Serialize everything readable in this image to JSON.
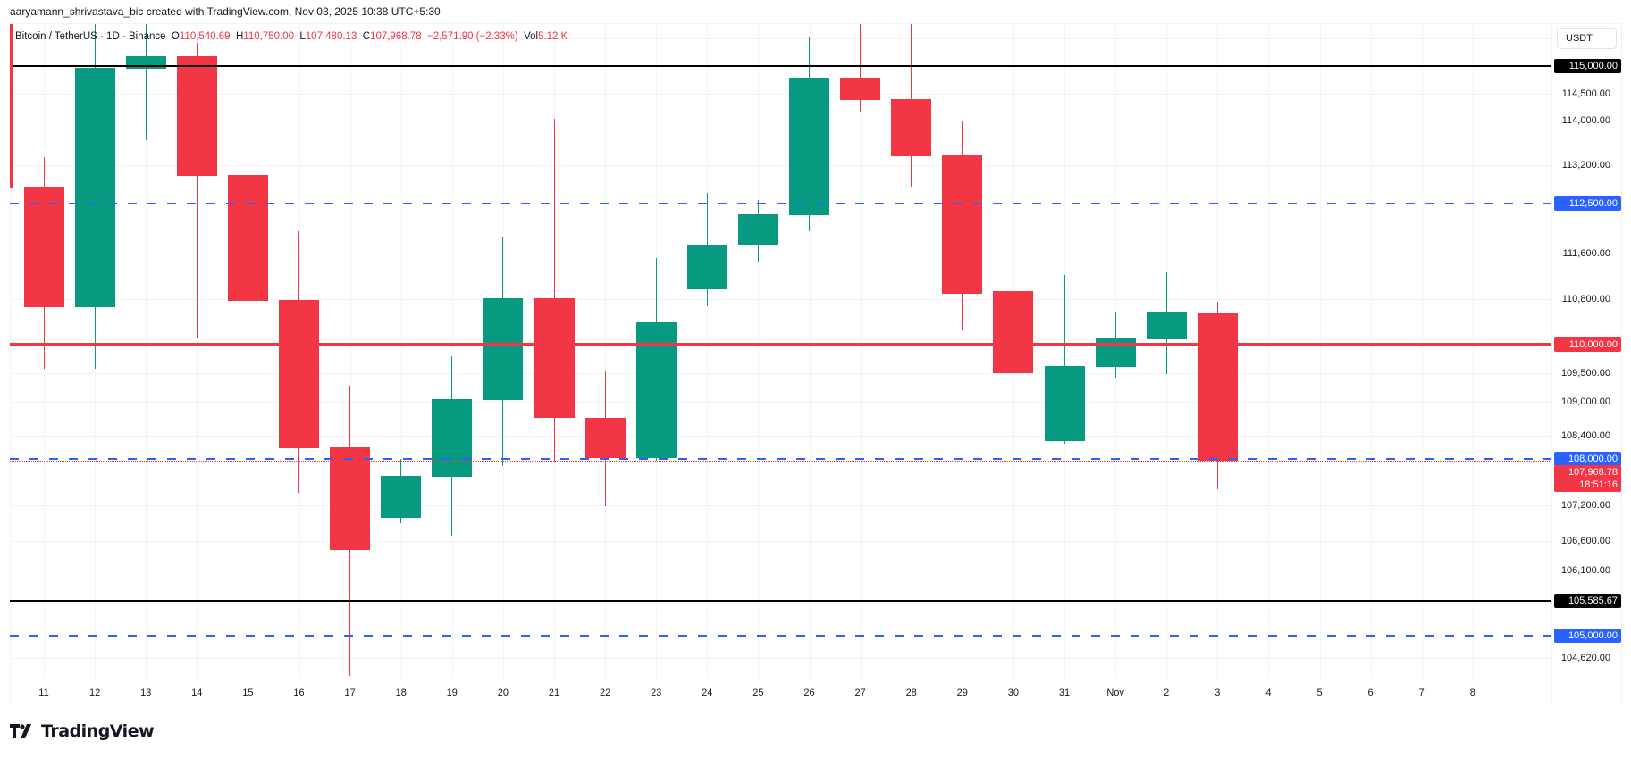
{
  "caption": "aaryamann_shrivastava_bic created with TradingView.com, Nov 03, 2025 10:38 UTC+5:30",
  "legend": {
    "symbol": "Bitcoin / TetherUS · 1D · Binance",
    "open_label": "O",
    "open": "110,540.69",
    "high_label": "H",
    "high": "110,750.00",
    "low_label": "L",
    "low": "107,480.13",
    "close_label": "C",
    "close": "107,968.78",
    "change": "−2,571.90 (−2.33%)",
    "vol_label": "Vol",
    "vol": "5.12 K"
  },
  "currency_button": "USDT",
  "logo_text": "TradingView",
  "colors": {
    "up": "#089981",
    "down": "#f23645",
    "blue_line": "#2962ff",
    "black_line": "#000000",
    "grid": "#f2f3f5"
  },
  "price_labels": [
    {
      "value": "115,000.00",
      "price": 115000,
      "bg": "#000000"
    },
    {
      "value": "112,500.00",
      "price": 112500,
      "bg": "#2962ff"
    },
    {
      "value": "110,000.00",
      "price": 110000,
      "bg": "#f23645"
    },
    {
      "value": "108,000.00",
      "price": 108000,
      "bg": "#2962ff"
    },
    {
      "value": "105,585.67",
      "price": 105585.67,
      "bg": "#000000"
    },
    {
      "value": "105,000.00",
      "price": 105000,
      "bg": "#2962ff"
    }
  ],
  "last_price_label": {
    "value": "107,968.78",
    "countdown": "18:51:16",
    "bg": "#f23645"
  },
  "chart_data": {
    "type": "candlestick",
    "title": "Bitcoin / TetherUS · 1D · Binance",
    "xlabel": "",
    "ylabel": "USDT",
    "ylim": [
      104300,
      116000
    ],
    "y_scale": "log",
    "y_ticks": [
      "114,500.00",
      "114,000.00",
      "113,200.00",
      "111,600.00",
      "110,800.00",
      "109,500.00",
      "109,000.00",
      "108,400.00",
      "107,200.00",
      "106,600.00",
      "106,100.00",
      "104,620.00"
    ],
    "y_tick_values": [
      114500,
      114000,
      113200,
      111600,
      110800,
      109500,
      109000,
      108400,
      107200,
      106600,
      106100,
      104620
    ],
    "x_ticks": [
      "11",
      "12",
      "13",
      "14",
      "15",
      "16",
      "17",
      "18",
      "19",
      "20",
      "21",
      "22",
      "23",
      "24",
      "25",
      "26",
      "27",
      "28",
      "29",
      "30",
      "31",
      "Nov",
      "2",
      "3",
      "4",
      "5",
      "6",
      "7",
      "8"
    ],
    "horizontal_lines": [
      {
        "price": 115000,
        "style": "solid",
        "color": "#000000",
        "width": 2
      },
      {
        "price": 112500,
        "style": "dashed",
        "color": "#2962ff",
        "width": 2
      },
      {
        "price": 110000,
        "style": "solid",
        "color": "#f23645",
        "width": 3
      },
      {
        "price": 108000,
        "style": "dashed",
        "color": "#2962ff",
        "width": 2
      },
      {
        "price": 107968.78,
        "style": "dotted",
        "color": "#f23645",
        "width": 1
      },
      {
        "price": 105585.67,
        "style": "solid",
        "color": "#000000",
        "width": 2
      },
      {
        "price": 105000,
        "style": "dashed",
        "color": "#2962ff",
        "width": 2
      }
    ],
    "candles": [
      {
        "date": "Oct 11",
        "open": 112793,
        "high": 113342,
        "low": 109575,
        "close": 110660
      },
      {
        "date": "Oct 12",
        "open": 110660,
        "high": 116000,
        "low": 109575,
        "close": 114971
      },
      {
        "date": "Oct 13",
        "open": 114955,
        "high": 116000,
        "low": 113646,
        "close": 115185
      },
      {
        "date": "Oct 14",
        "open": 115185,
        "high": 115431,
        "low": 110110,
        "close": 112998
      },
      {
        "date": "Oct 15",
        "open": 113014,
        "high": 113630,
        "low": 110203,
        "close": 110768
      },
      {
        "date": "Oct 16",
        "open": 110784,
        "high": 111999,
        "low": 107422,
        "close": 108190
      },
      {
        "date": "Oct 17",
        "open": 108206,
        "high": 109270,
        "low": 104325,
        "close": 106440
      },
      {
        "date": "Oct 18",
        "open": 106991,
        "high": 108002,
        "low": 106900,
        "close": 107709
      },
      {
        "date": "Oct 19",
        "open": 107694,
        "high": 109795,
        "low": 106687,
        "close": 109045
      },
      {
        "date": "Oct 20",
        "open": 109030,
        "high": 111913,
        "low": 107880,
        "close": 110817
      },
      {
        "date": "Oct 21",
        "open": 110817,
        "high": 114039,
        "low": 107942,
        "close": 108720
      },
      {
        "date": "Oct 22",
        "open": 108720,
        "high": 109546,
        "low": 107193,
        "close": 108025
      },
      {
        "date": "Oct 23",
        "open": 108025,
        "high": 111532,
        "low": 107979,
        "close": 110392
      },
      {
        "date": "Oct 24",
        "open": 110975,
        "high": 112696,
        "low": 110674,
        "close": 111768
      },
      {
        "date": "Oct 25",
        "open": 111768,
        "high": 112568,
        "low": 111451,
        "close": 112311
      },
      {
        "date": "Oct 26",
        "open": 112295,
        "high": 115534,
        "low": 111999,
        "close": 114782
      },
      {
        "date": "Oct 27",
        "open": 114782,
        "high": 116000,
        "low": 114162,
        "close": 114374
      },
      {
        "date": "Oct 28",
        "open": 114390,
        "high": 116000,
        "low": 112809,
        "close": 113351
      },
      {
        "date": "Oct 29",
        "open": 113367,
        "high": 114007,
        "low": 110250,
        "close": 110895
      },
      {
        "date": "Oct 30",
        "open": 110942,
        "high": 112267,
        "low": 107759,
        "close": 109499
      },
      {
        "date": "Oct 31",
        "open": 108313,
        "high": 111219,
        "low": 108266,
        "close": 109623
      },
      {
        "date": "Nov 1",
        "open": 109608,
        "high": 110580,
        "low": 109420,
        "close": 110108
      },
      {
        "date": "Nov 2",
        "open": 110092,
        "high": 111266,
        "low": 109483,
        "close": 110564
      },
      {
        "date": "Nov 3",
        "open": 110540.69,
        "high": 110750.0,
        "low": 107480.13,
        "close": 107968.78
      }
    ]
  }
}
